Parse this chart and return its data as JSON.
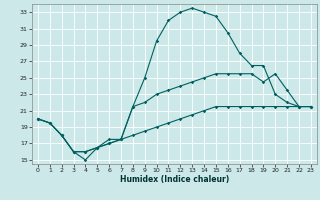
{
  "xlabel": "Humidex (Indice chaleur)",
  "xlim": [
    -0.5,
    23.5
  ],
  "ylim": [
    14.5,
    34.0
  ],
  "yticks": [
    15,
    17,
    19,
    21,
    23,
    25,
    27,
    29,
    31,
    33
  ],
  "xticks": [
    0,
    1,
    2,
    3,
    4,
    5,
    6,
    7,
    8,
    9,
    10,
    11,
    12,
    13,
    14,
    15,
    16,
    17,
    18,
    19,
    20,
    21,
    22,
    23
  ],
  "bg_color": "#cce8e8",
  "line_color": "#006060",
  "grid_color": "#ffffff",
  "line1_x": [
    0,
    1,
    2,
    3,
    4,
    5,
    6,
    7,
    8,
    9,
    10,
    11,
    12,
    13,
    14,
    15,
    16,
    17,
    18,
    19,
    20,
    21,
    22,
    23
  ],
  "line1_y": [
    20.0,
    19.5,
    18.0,
    16.0,
    15.0,
    16.5,
    17.5,
    17.5,
    21.5,
    25.0,
    29.5,
    32.0,
    33.0,
    33.5,
    33.0,
    32.5,
    30.5,
    28.0,
    26.5,
    26.5,
    23.0,
    22.0,
    21.5,
    21.5
  ],
  "line2_x": [
    0,
    1,
    2,
    3,
    4,
    5,
    6,
    7,
    8,
    9,
    10,
    11,
    12,
    13,
    14,
    15,
    16,
    17,
    18,
    19,
    20,
    21,
    22,
    23
  ],
  "line2_y": [
    20.0,
    19.5,
    18.0,
    16.0,
    16.0,
    16.5,
    17.0,
    17.5,
    21.5,
    22.0,
    23.0,
    23.5,
    24.0,
    24.5,
    25.0,
    25.5,
    25.5,
    25.5,
    25.5,
    24.5,
    25.5,
    23.5,
    21.5,
    21.5
  ],
  "line3_x": [
    0,
    1,
    2,
    3,
    4,
    5,
    6,
    7,
    8,
    9,
    10,
    11,
    12,
    13,
    14,
    15,
    16,
    17,
    18,
    19,
    20,
    21,
    22,
    23
  ],
  "line3_y": [
    20.0,
    19.5,
    18.0,
    16.0,
    16.0,
    16.5,
    17.0,
    17.5,
    18.0,
    18.5,
    19.0,
    19.5,
    20.0,
    20.5,
    21.0,
    21.5,
    21.5,
    21.5,
    21.5,
    21.5,
    21.5,
    21.5,
    21.5,
    21.5
  ]
}
